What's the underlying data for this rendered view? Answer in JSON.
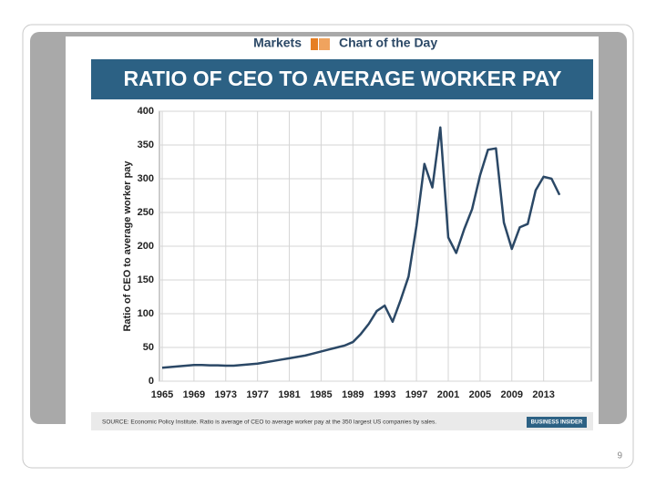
{
  "header": {
    "section": "Markets",
    "column": "Chart of the Day"
  },
  "chart_data": {
    "type": "line",
    "title": "RATIO OF CEO TO AVERAGE WORKER PAY",
    "y_label": "Ratio of CEO to average worker pay",
    "x": [
      1965,
      1966,
      1967,
      1968,
      1969,
      1970,
      1971,
      1972,
      1973,
      1974,
      1975,
      1976,
      1977,
      1978,
      1979,
      1980,
      1981,
      1982,
      1983,
      1984,
      1985,
      1986,
      1987,
      1988,
      1989,
      1990,
      1991,
      1992,
      1993,
      1994,
      1995,
      1996,
      1997,
      1998,
      1999,
      2000,
      2001,
      2002,
      2003,
      2004,
      2005,
      2006,
      2007,
      2008,
      2009,
      2010,
      2011,
      2012,
      2013,
      2014,
      2015
    ],
    "series": [
      {
        "name": "Ratio of CEO to average worker pay",
        "color": "#2b4866",
        "values": [
          20,
          21,
          22,
          23,
          24,
          24,
          23.5,
          23.5,
          23,
          23,
          24,
          25,
          26,
          28,
          30,
          32,
          34,
          36,
          38,
          41,
          44,
          47,
          50,
          53,
          58,
          70,
          85,
          104,
          112,
          88,
          120,
          155,
          230,
          322,
          287,
          376,
          213,
          190,
          225,
          255,
          305,
          343,
          345,
          235,
          196,
          228,
          233,
          283,
          303,
          300,
          276
        ]
      }
    ],
    "xlim": [
      1965,
      2019
    ],
    "xticks": [
      1965,
      1969,
      1973,
      1977,
      1981,
      1985,
      1989,
      1993,
      1997,
      2001,
      2005,
      2009,
      2013
    ],
    "ylim": [
      0,
      400
    ],
    "yticks": [
      0,
      50,
      100,
      150,
      200,
      250,
      300,
      350,
      400
    ],
    "grid": true,
    "source": "SOURCE: Economic Policy Institute. Ratio is average of CEO to average worker pay at the 350 largest US companies by sales.",
    "publisher": "BUSINESS INSIDER"
  },
  "page_number": "9"
}
